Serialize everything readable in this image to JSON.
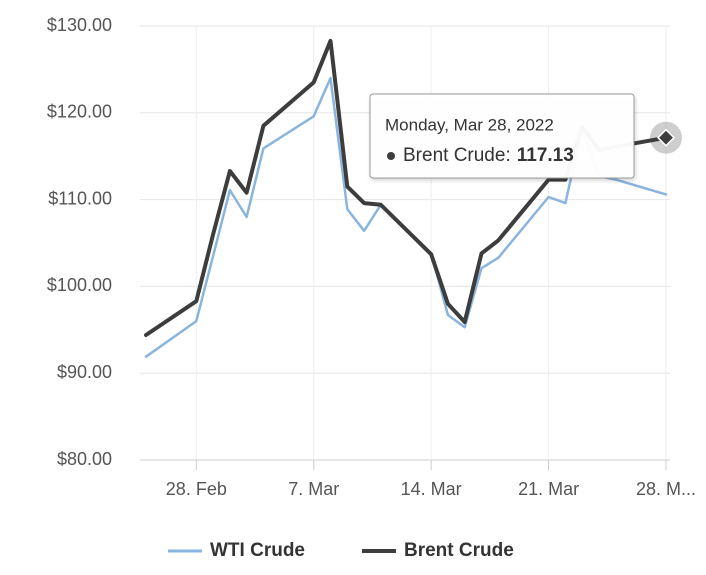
{
  "chart_data": {
    "type": "line",
    "x": [
      "2022-02-25",
      "2022-02-28",
      "2022-03-01",
      "2022-03-02",
      "2022-03-03",
      "2022-03-04",
      "2022-03-07",
      "2022-03-08",
      "2022-03-09",
      "2022-03-10",
      "2022-03-11",
      "2022-03-14",
      "2022-03-15",
      "2022-03-16",
      "2022-03-17",
      "2022-03-18",
      "2022-03-21",
      "2022-03-22",
      "2022-03-23",
      "2022-03-24",
      "2022-03-25",
      "2022-03-28"
    ],
    "series": [
      {
        "name": "WTI Crude",
        "color": "#8ab4e0",
        "values": [
          91.9,
          96.0,
          103.5,
          111.1,
          108.0,
          115.9,
          119.6,
          124.0,
          108.9,
          106.4,
          109.4,
          103.8,
          96.7,
          95.3,
          102.1,
          103.3,
          110.3,
          109.6,
          118.2,
          112.7,
          112.3,
          110.6
        ]
      },
      {
        "name": "Brent Crude",
        "color": "#3d3d3d",
        "values": [
          94.4,
          98.3,
          106.0,
          113.3,
          110.8,
          118.5,
          123.5,
          128.3,
          111.5,
          109.6,
          109.4,
          103.7,
          98.0,
          95.9,
          103.8,
          105.3,
          112.3,
          112.3,
          118.4,
          115.7,
          116.1,
          117.13
        ]
      }
    ],
    "xlim": [
      "2022-02-25",
      "2022-03-28"
    ],
    "xticks": [
      {
        "value": "2022-02-28",
        "label": "28. Feb"
      },
      {
        "value": "2022-03-07",
        "label": "7. Mar"
      },
      {
        "value": "2022-03-14",
        "label": "14. Mar"
      },
      {
        "value": "2022-03-21",
        "label": "21. Mar"
      },
      {
        "value": "2022-03-28",
        "label": "28. M..."
      }
    ],
    "ylim": [
      80,
      130
    ],
    "yticks": [
      {
        "value": 80,
        "label": "$80.00"
      },
      {
        "value": 90,
        "label": "$90.00"
      },
      {
        "value": 100,
        "label": "$100.00"
      },
      {
        "value": 110,
        "label": "$110.00"
      },
      {
        "value": 120,
        "label": "$120.00"
      },
      {
        "value": 130,
        "label": "$130.00"
      }
    ],
    "grid": true,
    "legend": "bottom",
    "tooltip": {
      "title": "Monday, Mar 28, 2022",
      "label": "Brent Crude:"
    }
  }
}
